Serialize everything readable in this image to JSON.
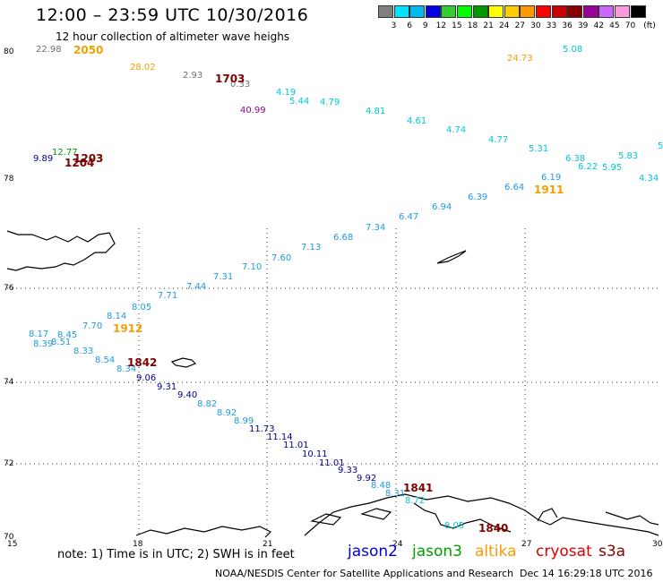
{
  "header": {
    "title": "12:00 – 23:59 UTC 10/30/2016",
    "subtitle": "12 hour collection of altimeter wave heighs"
  },
  "color_scale": {
    "unit": "(ft)",
    "items": [
      {
        "label": "3",
        "color": "#808080"
      },
      {
        "label": "6",
        "color": "#00e5ff"
      },
      {
        "label": "9",
        "color": "#00b8f0"
      },
      {
        "label": "12",
        "color": "#0000e0"
      },
      {
        "label": "15",
        "color": "#33cc33"
      },
      {
        "label": "18",
        "color": "#00ff00"
      },
      {
        "label": "21",
        "color": "#009900"
      },
      {
        "label": "24",
        "color": "#ffff00"
      },
      {
        "label": "27",
        "color": "#ffcc00"
      },
      {
        "label": "30",
        "color": "#ff9900"
      },
      {
        "label": "33",
        "color": "#ff0000"
      },
      {
        "label": "36",
        "color": "#cc0000"
      },
      {
        "label": "39",
        "color": "#880000"
      },
      {
        "label": "42",
        "color": "#990099"
      },
      {
        "label": "45",
        "color": "#cc66ff"
      },
      {
        "label": "70",
        "color": "#ff99dd"
      },
      {
        "label": "",
        "color": "#000000"
      }
    ]
  },
  "axes": {
    "lon_labels": [
      "15",
      "18",
      "21",
      "24",
      "27",
      "30"
    ],
    "lat_labels": [
      "80",
      "78",
      "76",
      "74",
      "72",
      "70"
    ]
  },
  "colors": {
    "cyan": "#00c8d8",
    "blue": "#1e9be0",
    "navy": "#000090",
    "grey": "#707070",
    "purple": "#990099",
    "orange": "#f0a000",
    "maroon": "#800000",
    "green": "#00a000",
    "red": "#e00000",
    "coast": "#000000",
    "grid": "#333333"
  },
  "wave_values": {
    "track_north": [
      {
        "v": "4.19",
        "c": "cyan"
      },
      {
        "v": "5.44",
        "c": "cyan"
      },
      {
        "v": "4.79",
        "c": "cyan"
      },
      {
        "v": "4.81",
        "c": "cyan"
      },
      {
        "v": "4.61",
        "c": "cyan"
      },
      {
        "v": "4.74",
        "c": "cyan"
      },
      {
        "v": "4.77",
        "c": "cyan"
      },
      {
        "v": "5.31",
        "c": "cyan"
      },
      {
        "v": "6.38",
        "c": "cyan"
      },
      {
        "v": "6.22",
        "c": "cyan"
      },
      {
        "v": "5.95",
        "c": "cyan"
      },
      {
        "v": "5.83",
        "c": "cyan"
      },
      {
        "v": "4.34",
        "c": "cyan"
      },
      {
        "v": "5",
        "c": "cyan"
      },
      {
        "v": "5.08",
        "c": "cyan"
      },
      {
        "v": "24.73",
        "c": "orange"
      }
    ],
    "track_upper_left": [
      {
        "v": "22.98",
        "c": "grey"
      },
      {
        "v": "28.02",
        "c": "orange"
      },
      {
        "v": "2.93",
        "c": "grey"
      },
      {
        "v": "0.33",
        "c": "grey"
      },
      {
        "v": "40.99",
        "c": "purple"
      },
      {
        "v": "9.89",
        "c": "navy"
      },
      {
        "v": "12.77",
        "c": "green"
      }
    ],
    "track_diagonal_up": [
      {
        "v": "6.19",
        "c": "blue"
      },
      {
        "v": "6.64",
        "c": "blue"
      },
      {
        "v": "6.39",
        "c": "blue"
      },
      {
        "v": "6.94",
        "c": "blue"
      },
      {
        "v": "6.47",
        "c": "blue"
      },
      {
        "v": "7.34",
        "c": "blue"
      },
      {
        "v": "6.68",
        "c": "blue"
      },
      {
        "v": "7.13",
        "c": "blue"
      },
      {
        "v": "7.60",
        "c": "blue"
      },
      {
        "v": "7.10",
        "c": "blue"
      },
      {
        "v": "7.31",
        "c": "blue"
      },
      {
        "v": "7.44",
        "c": "blue"
      },
      {
        "v": "7.71",
        "c": "blue"
      },
      {
        "v": "8.05",
        "c": "blue"
      },
      {
        "v": "8.14",
        "c": "blue"
      },
      {
        "v": "7.70",
        "c": "blue"
      },
      {
        "v": "8.45",
        "c": "blue"
      },
      {
        "v": "8.17",
        "c": "blue"
      },
      {
        "v": "8.39",
        "c": "blue"
      },
      {
        "v": "8.51",
        "c": "blue"
      },
      {
        "v": "8.33",
        "c": "blue"
      },
      {
        "v": "8.54",
        "c": "blue"
      },
      {
        "v": "8.34",
        "c": "blue"
      }
    ],
    "track_diagonal_down": [
      {
        "v": "9.06",
        "c": "navy"
      },
      {
        "v": "9.31",
        "c": "navy"
      },
      {
        "v": "9.40",
        "c": "navy"
      },
      {
        "v": "8.82",
        "c": "blue"
      },
      {
        "v": "8.92",
        "c": "blue"
      },
      {
        "v": "8.99",
        "c": "blue"
      },
      {
        "v": "11.73",
        "c": "navy"
      },
      {
        "v": "11.14",
        "c": "navy"
      },
      {
        "v": "11.01",
        "c": "navy"
      },
      {
        "v": "10.11",
        "c": "navy"
      },
      {
        "v": "11.01",
        "c": "navy"
      },
      {
        "v": "9.33",
        "c": "navy"
      },
      {
        "v": "9.92",
        "c": "navy"
      },
      {
        "v": "8.48",
        "c": "blue"
      },
      {
        "v": "8.31",
        "c": "blue"
      },
      {
        "v": "8.72",
        "c": "cyan"
      },
      {
        "v": "8.05",
        "c": "cyan"
      }
    ]
  },
  "times": [
    {
      "t": "2050",
      "c": "orange"
    },
    {
      "t": "1703",
      "c": "maroon"
    },
    {
      "t": "1203",
      "c": "maroon"
    },
    {
      "t": "1204",
      "c": "maroon"
    },
    {
      "t": "1911",
      "c": "orange"
    },
    {
      "t": "1912",
      "c": "orange"
    },
    {
      "t": "1842",
      "c": "maroon"
    },
    {
      "t": "1841",
      "c": "maroon"
    },
    {
      "t": "1840",
      "c": "maroon"
    }
  ],
  "footer": {
    "note": "note:  1) Time is in UTC;  2) SWH is in feet",
    "legend": [
      {
        "name": "jason2",
        "color": "#0000e0"
      },
      {
        "name": "jason3",
        "color": "#00a000"
      },
      {
        "name": "altika",
        "color": "#ff9900"
      },
      {
        "name": "cryosat",
        "color": "#e00000"
      },
      {
        "name": "s3a",
        "color": "#880000"
      }
    ],
    "credit": "NOAA/NESDIS Center for Satellite Applications and Research",
    "generated": "Dec 14 16:29:18 UTC 2016"
  }
}
